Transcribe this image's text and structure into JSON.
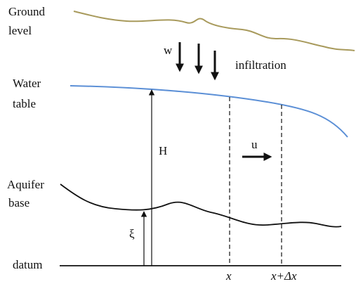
{
  "labels": {
    "ground_level": [
      "Ground",
      "level"
    ],
    "w": "w",
    "infiltration": "infiltration",
    "water_table": [
      "Water",
      "table"
    ],
    "H": "H",
    "u": "u",
    "aquifer_base": [
      "Aquifer",
      "base"
    ],
    "xi": "ξ",
    "datum": "datum",
    "x": "x",
    "x_dx": "x+Δx"
  }
}
